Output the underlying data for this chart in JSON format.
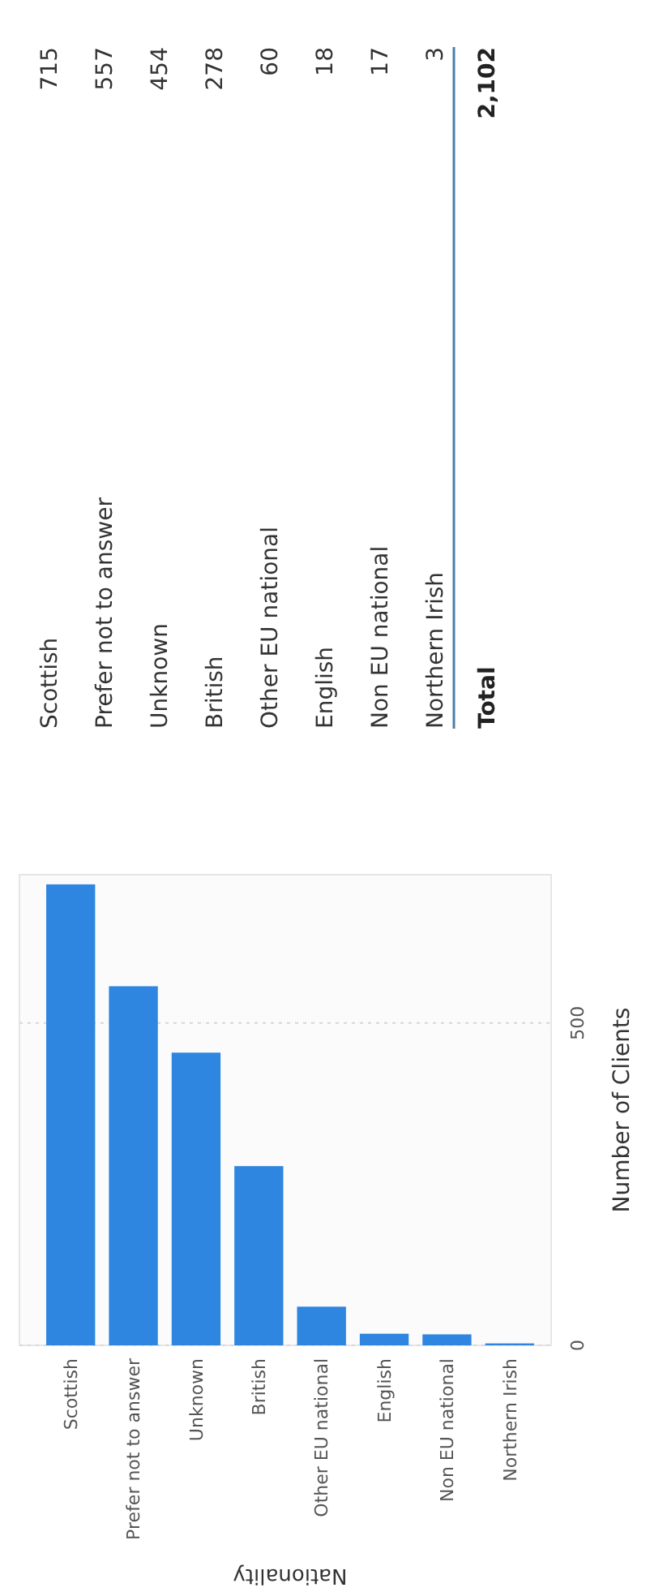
{
  "chart_data": [
    {
      "type": "bar",
      "xlabel": "Nationality",
      "ylabel": "Number of Clients",
      "categories": [
        "Scottish",
        "Prefer not to answer",
        "Unknown",
        "British",
        "Other EU national",
        "English",
        "Non EU national",
        "Northern Irish"
      ],
      "values": [
        715,
        557,
        454,
        278,
        60,
        18,
        17,
        3
      ],
      "color": "#2f86e0",
      "ylim": [
        0,
        730
      ],
      "yticks": [
        0,
        500
      ],
      "grid": "y"
    },
    {
      "type": "other",
      "categories": [
        "Scottish",
        "Prefer not to answer",
        "Unknown",
        "British",
        "Other EU national",
        "English",
        "Non EU national",
        "Northern Irish"
      ],
      "values": [
        715,
        557,
        454,
        278,
        60,
        18,
        17,
        3
      ],
      "data_labels": true,
      "annotations": [
        "Total",
        "2,102"
      ]
    }
  ]
}
